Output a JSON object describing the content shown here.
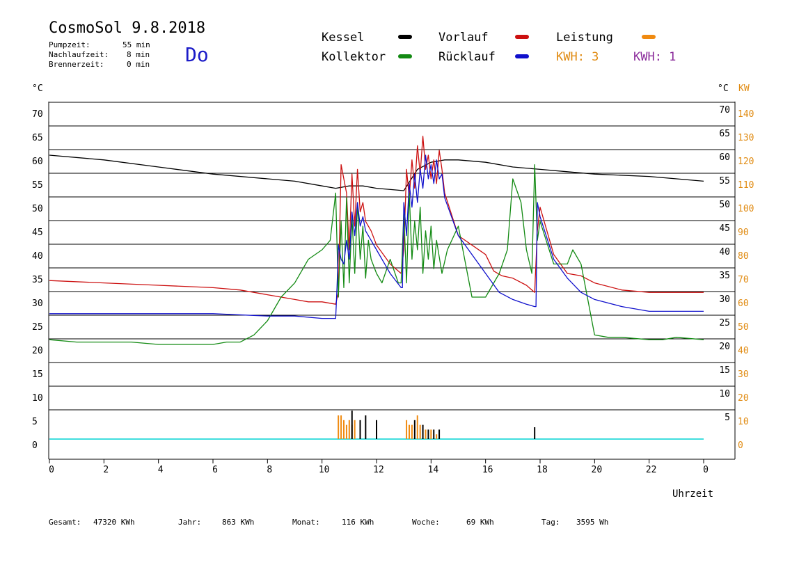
{
  "header": {
    "title": "CosmoSol 9.8.2018",
    "weekday": "Do",
    "pump_label": "Pumpzeit:",
    "pump_value": "55 min",
    "nachlauf_label": "Nachlaufzeit:",
    "nachlauf_value": "8 min",
    "brenner_label": "Brennerzeit:",
    "brenner_value": "0 min"
  },
  "legend": {
    "kessel": "Kessel",
    "vorlauf": "Vorlauf",
    "leistung": "Leistung",
    "kollektor": "Kollektor",
    "ruecklauf": "Rücklauf",
    "kwh1": "KWH: 3",
    "kwh2": "KWH: 1"
  },
  "units": {
    "left": "°C",
    "right_c": "°C",
    "right_kw": "KW"
  },
  "xaxis_title": "Uhrzeit",
  "footer": {
    "gesamt_label": "Gesamt:",
    "gesamt_value": "47320 KWh",
    "jahr_label": "Jahr:",
    "jahr_value": "863 KWh",
    "monat_label": "Monat:",
    "monat_value": "116 KWh",
    "woche_label": "Woche:",
    "woche_value": "69 KWh",
    "tag_label": "Tag:",
    "tag_value": "3595 Wh"
  },
  "colors": {
    "kessel": "#000000",
    "vorlauf": "#cc1010",
    "leistung": "#f08a10",
    "kollektor": "#138a13",
    "ruecklauf": "#1010cc",
    "kwh1": "#e08a10",
    "kwh2": "#8a2a9a",
    "baseline": "#00d4d4",
    "left_ticks": "#000000",
    "right_kw_ticks": "#e08a10"
  },
  "chart_data": {
    "type": "line",
    "xlabel": "Uhrzeit",
    "ylabel": "°C",
    "xlim": [
      0,
      24
    ],
    "ylim": [
      -5,
      75
    ],
    "grid": true,
    "left_ticks": [
      "0",
      "5",
      "10",
      "15",
      "20",
      "25",
      "30",
      "35",
      "40",
      "45",
      "50",
      "55",
      "60",
      "65",
      "70"
    ],
    "right_c_ticks": [
      "5",
      "10",
      "15",
      "20",
      "25",
      "30",
      "35",
      "40",
      "45",
      "50",
      "55",
      "60",
      "65",
      "70"
    ],
    "right_kw_ticks": [
      "0",
      "10",
      "20",
      "30",
      "40",
      "50",
      "60",
      "70",
      "80",
      "90",
      "100",
      "110",
      "120",
      "130",
      "140"
    ],
    "x_ticks": [
      "0",
      "2",
      "4",
      "6",
      "8",
      "10",
      "12",
      "14",
      "16",
      "18",
      "20",
      "22",
      "0"
    ],
    "series": [
      {
        "name": "Kessel",
        "color": "#000000",
        "x": [
          0,
          2,
          4,
          6,
          8,
          9,
          10,
          10.5,
          11,
          11.5,
          12,
          13,
          13.5,
          14,
          14.5,
          15,
          16,
          17,
          18,
          19,
          20,
          22,
          24
        ],
        "y": [
          60,
          59,
          57.5,
          56,
          55,
          54.5,
          53.5,
          53,
          53.5,
          53.5,
          53,
          52.5,
          57,
          58.5,
          59,
          59,
          58.5,
          57.5,
          57,
          56.5,
          56,
          55.5,
          54.5
        ]
      },
      {
        "name": "Vorlauf",
        "color": "#cc1010",
        "x": [
          0,
          2,
          4,
          6,
          7,
          8,
          9,
          9.5,
          10,
          10.5,
          10.6,
          10.7,
          10.8,
          10.9,
          11,
          11.1,
          11.2,
          11.3,
          11.4,
          11.5,
          11.6,
          11.8,
          12,
          12.5,
          12.9,
          13,
          13.1,
          13.2,
          13.3,
          13.4,
          13.5,
          13.6,
          13.7,
          13.8,
          13.9,
          14,
          14.1,
          14.2,
          14.3,
          14.4,
          14.5,
          15,
          16,
          16.3,
          16.6,
          17,
          17.5,
          17.8,
          17.9,
          18,
          18.5,
          19,
          19.5,
          20,
          21,
          22,
          24
        ],
        "y": [
          33.5,
          33,
          32.5,
          32,
          31.5,
          30.5,
          29.5,
          29,
          29,
          28.5,
          31,
          58,
          55,
          52,
          40,
          56,
          45,
          57,
          48,
          50,
          46,
          44,
          41,
          37,
          35,
          40,
          57,
          51,
          59,
          53,
          62,
          56,
          64,
          57,
          60,
          55,
          59,
          54,
          61,
          57,
          52,
          43,
          39,
          35.5,
          34.5,
          34,
          32.5,
          31,
          44,
          49,
          39,
          35,
          34.5,
          33,
          31.5,
          31,
          31
        ]
      },
      {
        "name": "Kollektor",
        "color": "#138a13",
        "x": [
          0,
          1,
          2,
          3,
          4,
          5,
          6,
          6.5,
          7,
          7.5,
          8,
          8.5,
          9,
          9.5,
          10,
          10.3,
          10.5,
          10.6,
          10.7,
          10.8,
          10.9,
          11,
          11.1,
          11.2,
          11.3,
          11.4,
          11.5,
          11.6,
          11.7,
          11.8,
          12,
          12.2,
          12.5,
          12.8,
          12.9,
          13,
          13.1,
          13.2,
          13.3,
          13.4,
          13.5,
          13.6,
          13.7,
          13.8,
          13.9,
          14,
          14.1,
          14.2,
          14.4,
          14.6,
          15,
          15.5,
          16,
          16.5,
          16.8,
          17,
          17.3,
          17.5,
          17.7,
          17.8,
          17.9,
          18,
          18.5,
          19,
          19.2,
          19.5,
          20,
          20.5,
          21,
          22,
          22.5,
          23,
          24
        ],
        "y": [
          21,
          20.5,
          20.5,
          20.5,
          20,
          20,
          20,
          20.5,
          20.5,
          22,
          25,
          30,
          33,
          38,
          40,
          42,
          52,
          30,
          46,
          32,
          51,
          33,
          47,
          35,
          50,
          38,
          45,
          34,
          42,
          38,
          35,
          33,
          38,
          33,
          33,
          48,
          33,
          52,
          38,
          46,
          40,
          49,
          35,
          44,
          38,
          45,
          36,
          42,
          35,
          40,
          45,
          30,
          30,
          35,
          40,
          55,
          50,
          40,
          35,
          58,
          42,
          46,
          37,
          37,
          40,
          37,
          22,
          21.5,
          21.5,
          21,
          21,
          21.5,
          21
        ]
      },
      {
        "name": "Rücklauf",
        "color": "#1010cc",
        "x": [
          0,
          2,
          4,
          6,
          8,
          9,
          10,
          10.5,
          10.55,
          10.6,
          10.7,
          10.8,
          10.9,
          11,
          11.1,
          11.2,
          11.3,
          11.4,
          11.5,
          11.6,
          11.8,
          12,
          12.5,
          12.9,
          12.95,
          13,
          13.1,
          13.2,
          13.3,
          13.4,
          13.5,
          13.6,
          13.7,
          13.8,
          13.9,
          14,
          14.1,
          14.2,
          14.3,
          14.4,
          14.5,
          15,
          16,
          16.5,
          17,
          17.5,
          17.8,
          17.85,
          17.9,
          18,
          18.5,
          19,
          19.5,
          20,
          21,
          22,
          23,
          24
        ],
        "y": [
          26.5,
          26.5,
          26.5,
          26.5,
          26,
          26,
          25.5,
          25.5,
          32,
          41,
          38,
          37,
          42,
          38,
          48,
          43,
          50,
          45,
          47,
          44,
          42,
          40,
          35,
          32,
          32,
          50,
          43,
          54,
          49,
          56,
          50,
          57,
          53,
          60,
          55,
          58,
          54,
          59,
          55,
          56,
          51,
          43,
          35,
          31,
          29.5,
          28.5,
          28,
          28,
          50,
          47,
          38,
          34,
          31,
          29.5,
          28,
          27,
          27,
          27
        ]
      }
    ],
    "bars": [
      {
        "name": "Leistung",
        "color": "#f08a10",
        "axis": "right_kw",
        "x": [
          10.6,
          10.7,
          10.8,
          10.9,
          11,
          11.1,
          11.2,
          13.1,
          13.2,
          13.3,
          13.5,
          13.6,
          13.8,
          14,
          14.2
        ],
        "y": [
          5,
          5,
          4,
          3,
          4,
          3,
          4,
          4,
          3,
          3,
          5,
          3,
          2,
          2,
          1
        ]
      },
      {
        "name": "Kessel",
        "color": "#000000",
        "axis": "right_kw",
        "x": [
          11.1,
          11.4,
          11.6,
          12,
          13.4,
          13.7,
          13.9,
          14.1,
          14.3,
          17.8
        ],
        "y": [
          6,
          4,
          5,
          4,
          4,
          3,
          2,
          2,
          2,
          2.5
        ]
      }
    ]
  }
}
